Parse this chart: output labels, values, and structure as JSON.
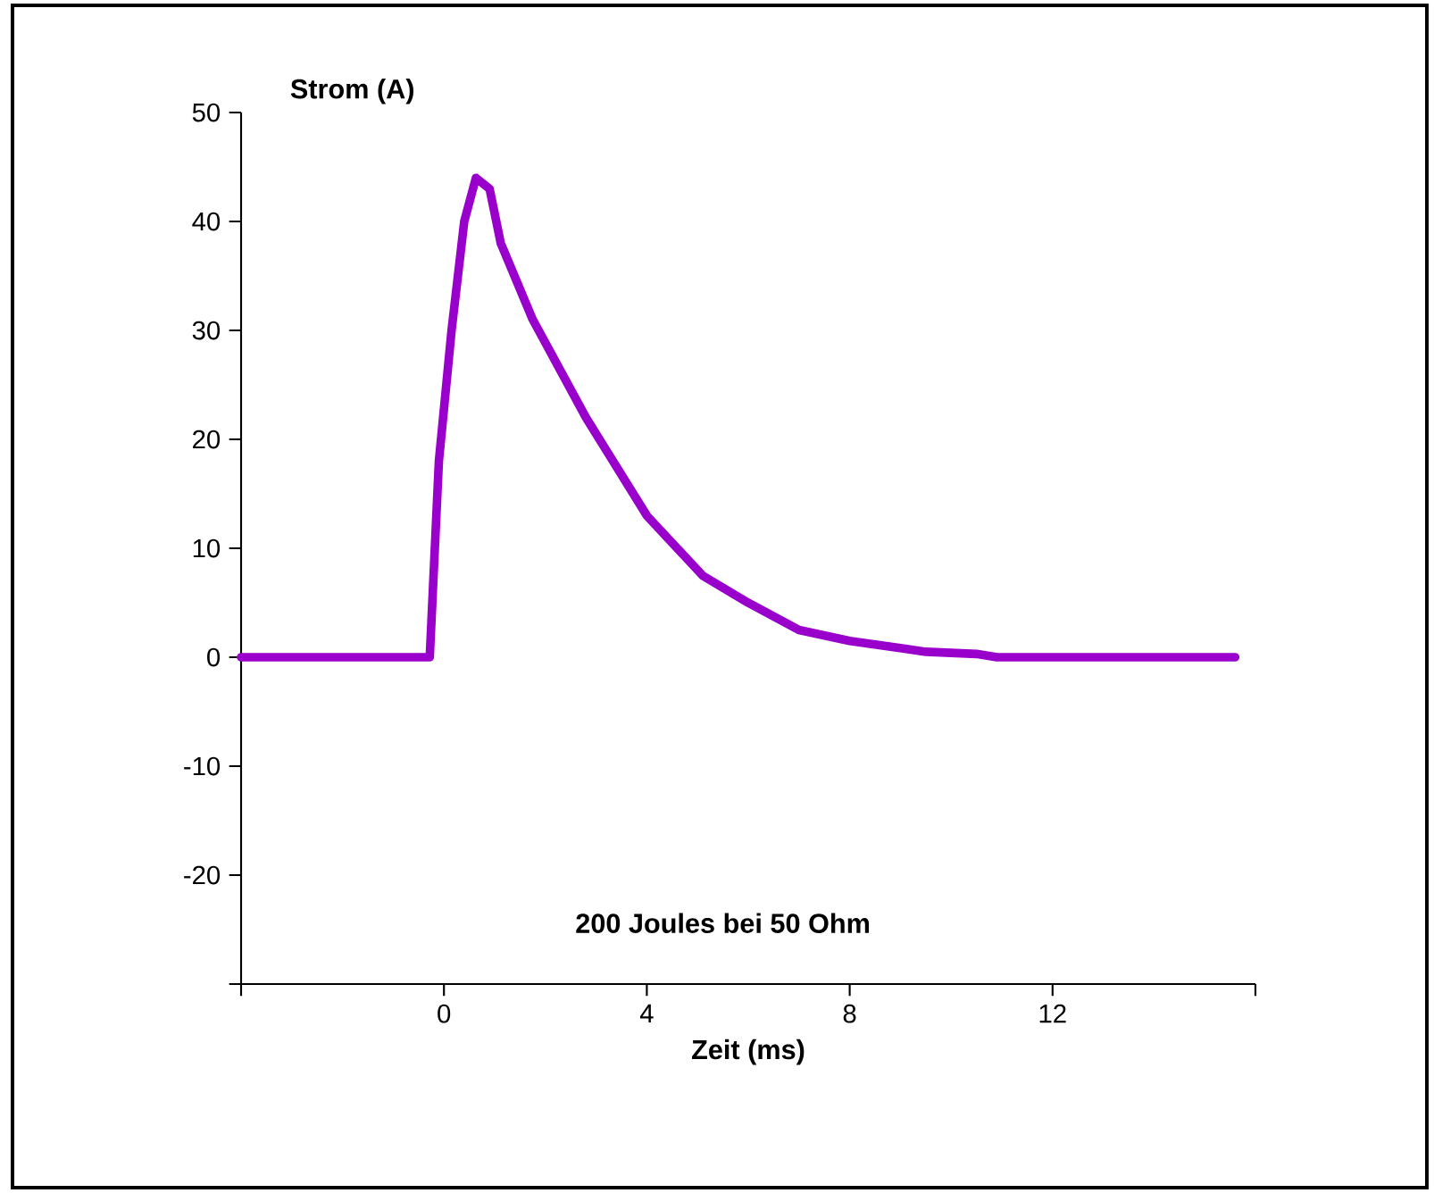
{
  "chart_data": {
    "type": "line",
    "ylabel": "Strom (A)",
    "xlabel": "Zeit  (ms)",
    "annotations": [
      "200 Joules bei 50 Ohm"
    ],
    "xlim": [
      -4,
      16
    ],
    "ylim": [
      -30,
      50
    ],
    "xticks": [
      {
        "value": -4,
        "label": null
      },
      0,
      4,
      8,
      12,
      {
        "value": 16,
        "label": null
      }
    ],
    "yticks": [
      {
        "value": -30,
        "label": null
      },
      -20,
      -10,
      0,
      10,
      20,
      30,
      40,
      50
    ],
    "grid": false,
    "marker": "none",
    "line_style": "solid",
    "series": [
      {
        "color": "#9900cc",
        "x": [
          -4,
          -0.35,
          -0.28,
          -0.1,
          0.15,
          0.4,
          0.63,
          0.9,
          1.12,
          1.75,
          2.8,
          4,
          5.1,
          6,
          7,
          8,
          9.5,
          10.5,
          10.9,
          15.6
        ],
        "values": [
          0,
          0,
          0,
          18,
          30,
          40,
          44,
          43,
          38,
          31,
          22,
          13,
          7.5,
          5,
          2.5,
          1.5,
          0.5,
          0.3,
          0,
          0
        ]
      }
    ]
  }
}
